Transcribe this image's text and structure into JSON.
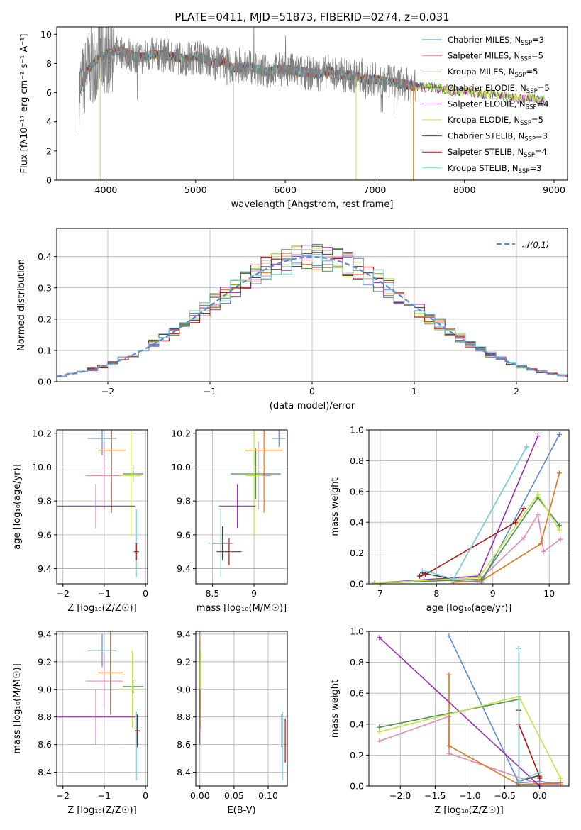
{
  "title": "PLATE=0411, MJD=51873, FIBERID=0274, z=0.031",
  "colors": {
    "chabrier_miles": "#5b8bd6",
    "salpeter_miles": "#e08ab8",
    "kroupa_miles": "#d97a1e",
    "chabrier_elodie": "#4f8f56",
    "salpeter_elodie": "#9b2fae",
    "kroupa_elodie": "#c6e34a",
    "chabrier_stelib": "#4a4a4a",
    "salpeter_stelib": "#b01515",
    "kroupa_stelib": "#7fd3dd",
    "gaussian": "#5b8bd6",
    "grid": "#b0b0b0",
    "spectrum_data": "#7f7f7f"
  },
  "chart_data": [
    {
      "id": "spectrum",
      "type": "line",
      "xlabel": "wavelength [Angstrom, rest frame]",
      "ylabel": "Flux [fλ10⁻¹⁷ erg cm⁻² s⁻¹ A⁻¹]",
      "xlim": [
        3450,
        9150
      ],
      "ylim": [
        0,
        10.5
      ],
      "xticks": [
        4000,
        5000,
        6000,
        7000,
        8000,
        9000
      ],
      "yticks": [
        0,
        2,
        4,
        6,
        8,
        10
      ],
      "grid": false,
      "legend_position": "top-right",
      "legend": [
        {
          "key": "chabrier_miles",
          "label": "Chabrier MILES, N",
          "sub": "SSP",
          "n": "=3"
        },
        {
          "key": "salpeter_miles",
          "label": "Salpeter MILES, N",
          "sub": "SSP",
          "n": "=5"
        },
        {
          "key": "kroupa_miles",
          "label": "Kroupa MILES, N",
          "sub": "SSP",
          "n": "=5"
        },
        {
          "key": "chabrier_elodie",
          "label": "Chabrier ELODIE, N",
          "sub": "SSP",
          "n": "=5"
        },
        {
          "key": "salpeter_elodie",
          "label": "Salpeter ELODIE, N",
          "sub": "SSP",
          "n": "=4"
        },
        {
          "key": "kroupa_elodie",
          "label": "Kroupa ELODIE, N",
          "sub": "SSP",
          "n": "=5"
        },
        {
          "key": "chabrier_stelib",
          "label": "Chabrier STELIB, N",
          "sub": "SSP",
          "n": "=3"
        },
        {
          "key": "salpeter_stelib",
          "label": "Salpeter STELIB, N",
          "sub": "SSP",
          "n": "=4"
        },
        {
          "key": "kroupa_stelib",
          "label": "Kroupa STELIB, N",
          "sub": "SSP",
          "n": "=3"
        }
      ],
      "data_continuum": {
        "x": [
          3700,
          3800,
          3900,
          4000,
          4100,
          4200,
          4300,
          4400,
          4500,
          4600,
          4700,
          4800,
          4900,
          5000,
          5100,
          5200,
          5300,
          5400,
          5500,
          5600,
          5700,
          5800,
          5900,
          6000,
          6100,
          6200,
          6300,
          6400,
          6500,
          6600,
          6700,
          6800,
          6900,
          7000,
          7100,
          7200,
          7300,
          7400,
          7500,
          7600,
          7700,
          7800,
          7900,
          8000,
          8100,
          8200,
          8300,
          8400,
          8500,
          8600,
          8700,
          8800,
          8900
        ],
        "y": [
          6.1,
          7.6,
          8.3,
          8.6,
          8.9,
          8.8,
          8.5,
          8.4,
          8.6,
          8.6,
          8.5,
          8.4,
          8.3,
          8.5,
          8.3,
          8.0,
          8.2,
          7.7,
          7.7,
          7.8,
          7.6,
          7.4,
          7.6,
          7.6,
          7.5,
          7.4,
          7.3,
          7.3,
          7.5,
          7.2,
          7.2,
          7.1,
          6.9,
          6.9,
          6.8,
          6.7,
          6.6,
          6.5,
          6.4,
          6.4,
          6.3,
          6.2,
          6.1,
          6.1,
          6.0,
          5.9,
          5.9,
          5.8,
          5.7,
          5.6,
          5.7,
          5.5,
          5.5
        ]
      },
      "data_range": [
        3700,
        7450
      ],
      "deep_dips": [
        {
          "x": 3935,
          "color": "kroupa_elodie"
        },
        {
          "x": 5420,
          "color": "spectrum_data"
        },
        {
          "x": 6790,
          "color": "kroupa_elodie"
        },
        {
          "x": 7430,
          "color": "kroupa_miles"
        }
      ]
    },
    {
      "id": "residuals",
      "type": "histogram",
      "xlabel": "(data-model)/error",
      "ylabel": "Normed distribution",
      "xlim": [
        -2.5,
        2.5
      ],
      "ylim": [
        0,
        0.49
      ],
      "xticks": [
        -2,
        -1,
        0,
        1,
        2
      ],
      "yticks": [
        0.0,
        0.1,
        0.2,
        0.3,
        0.4
      ],
      "grid": true,
      "legend_position": "top-right",
      "gaussian_label": "𝒩(0,1)",
      "bin_width": 0.1,
      "series_keys": [
        "chabrier_miles",
        "salpeter_miles",
        "kroupa_miles",
        "chabrier_elodie",
        "salpeter_elodie",
        "kroupa_elodie",
        "chabrier_stelib",
        "salpeter_stelib",
        "kroupa_stelib"
      ]
    },
    {
      "id": "age_vs_Z",
      "type": "errorbar",
      "xlabel": "Z [log₁₀(Z/Z☉)]",
      "ylabel": "age  [log₁₀(age/yr)]",
      "xlim": [
        -2.15,
        0.05
      ],
      "ylim": [
        9.31,
        10.22
      ],
      "xticks": [
        -2,
        -1,
        0
      ],
      "yticks": [
        9.4,
        9.6,
        9.8,
        10.0,
        10.2
      ],
      "grid": true,
      "points": [
        {
          "key": "chabrier_miles",
          "x": -1.05,
          "xerr": 0.35,
          "y": 10.17,
          "yerr": 0.1
        },
        {
          "key": "kroupa_miles",
          "x": -0.82,
          "xerr": 0.33,
          "y": 10.1,
          "yerr": 0.37
        },
        {
          "key": "salpeter_miles",
          "x": -1.0,
          "xerr": 0.45,
          "y": 9.95,
          "yerr": 0.2
        },
        {
          "key": "chabrier_elodie",
          "x": -0.3,
          "xerr": 0.25,
          "y": 9.96,
          "yerr": 0.05
        },
        {
          "key": "kroupa_elodie",
          "x": -0.35,
          "xerr": 0.25,
          "y": 9.95,
          "yerr": 0.36
        },
        {
          "key": "salpeter_elodie",
          "x": -1.2,
          "xerr": 0.95,
          "y": 9.77,
          "yerr": 0.13
        },
        {
          "key": "kroupa_stelib",
          "x": -0.22,
          "xerr": 0.05,
          "y": 9.55,
          "yerr": 0.2
        },
        {
          "key": "salpeter_stelib",
          "x": -0.22,
          "xerr": 0.06,
          "y": 9.5,
          "yerr": 0.05
        }
      ]
    },
    {
      "id": "age_vs_mass",
      "type": "errorbar",
      "xlabel": "mass [log₁₀(M/M☉)]",
      "ylabel": "",
      "xlim": [
        8.3,
        9.4
      ],
      "ylim": [
        9.31,
        10.22
      ],
      "xticks": [
        8.5,
        9.0
      ],
      "yticks": [
        9.4,
        9.6,
        9.8,
        10.0,
        10.2
      ],
      "grid": true,
      "points": [
        {
          "key": "chabrier_miles",
          "x": 9.3,
          "xerr": 0.08,
          "y": 10.17,
          "yerr": 0.05
        },
        {
          "key": "kroupa_miles",
          "x": 9.12,
          "xerr": 0.23,
          "y": 10.1,
          "yerr": 0.37
        },
        {
          "key": "salpeter_miles",
          "x": 9.05,
          "xerr": 0.15,
          "y": 9.95,
          "yerr": 0.2
        },
        {
          "key": "chabrier_elodie",
          "x": 9.02,
          "xerr": 0.3,
          "y": 9.96,
          "yerr": 0.15
        },
        {
          "key": "kroupa_elodie",
          "x": 9.0,
          "xerr": 0.1,
          "y": 9.95,
          "yerr": 0.35
        },
        {
          "key": "salpeter_elodie",
          "x": 8.8,
          "xerr": 0.22,
          "y": 9.77,
          "yerr": 0.13
        },
        {
          "key": "kroupa_stelib",
          "x": 8.6,
          "xerr": 0.15,
          "y": 9.55,
          "yerr": 0.2
        },
        {
          "key": "salpeter_stelib",
          "x": 8.7,
          "xerr": 0.15,
          "y": 9.5,
          "yerr": 0.08
        },
        {
          "key": "chabrier_stelib",
          "x": 8.62,
          "xerr": 0.12,
          "y": 9.55,
          "yerr": 0.1
        }
      ]
    },
    {
      "id": "mass_weight_vs_age",
      "type": "line",
      "xlabel": "age  [log₁₀(age/yr)]",
      "ylabel": "mass weight",
      "xlim": [
        6.8,
        10.35
      ],
      "ylim": [
        0,
        1.0
      ],
      "xticks": [
        7,
        8,
        9,
        10
      ],
      "yticks": [
        0.0,
        0.2,
        0.4,
        0.6,
        0.8,
        1.0
      ],
      "grid": true,
      "series": [
        {
          "key": "chabrier_miles",
          "x": [
            8.3,
            8.8,
            10.18
          ],
          "y": [
            0.02,
            0.01,
            0.97
          ]
        },
        {
          "key": "salpeter_miles",
          "x": [
            8.3,
            8.75,
            9.55,
            9.8,
            9.9,
            10.2
          ],
          "y": [
            0.01,
            0.02,
            0.3,
            0.45,
            0.21,
            0.29
          ]
        },
        {
          "key": "kroupa_miles",
          "x": [
            8.3,
            8.8,
            9.85,
            10.18
          ],
          "y": [
            0.01,
            0.02,
            0.26,
            0.72
          ]
        },
        {
          "key": "chabrier_elodie",
          "x": [
            6.9,
            8.8,
            9.8,
            10.18
          ],
          "y": [
            0.005,
            0.03,
            0.56,
            0.38
          ]
        },
        {
          "key": "salpeter_elodie",
          "x": [
            6.9,
            8.75,
            9.8
          ],
          "y": [
            0.005,
            0.05,
            0.96
          ]
        },
        {
          "key": "kroupa_elodie",
          "x": [
            6.9,
            8.75,
            9.8,
            10.18
          ],
          "y": [
            0.005,
            0.04,
            0.58,
            0.35
          ]
        },
        {
          "key": "chabrier_stelib",
          "x": [
            7.75,
            8.3,
            9.6
          ],
          "y": [
            0.07,
            0.03,
            0.89
          ]
        },
        {
          "key": "salpeter_stelib",
          "x": [
            7.7,
            7.8,
            9.4,
            9.55
          ],
          "y": [
            0.05,
            0.06,
            0.4,
            0.49
          ]
        },
        {
          "key": "kroupa_stelib",
          "x": [
            7.75,
            8.3,
            9.6
          ],
          "y": [
            0.09,
            0.03,
            0.89
          ]
        }
      ]
    },
    {
      "id": "mass_vs_Z",
      "type": "errorbar",
      "xlabel": "Z [log₁₀(Z/Z☉)]",
      "ylabel": "mass [log₁₀(M/M☉)]",
      "xlim": [
        -2.15,
        0.05
      ],
      "ylim": [
        8.3,
        9.42
      ],
      "xticks": [
        -2,
        -1,
        0
      ],
      "yticks": [
        8.4,
        8.6,
        8.8,
        9.0,
        9.2,
        9.4
      ],
      "grid": true,
      "points": [
        {
          "key": "chabrier_miles",
          "x": -1.05,
          "xerr": 0.35,
          "y": 9.28,
          "yerr": 0.12
        },
        {
          "key": "kroupa_miles",
          "x": -0.85,
          "xerr": 0.3,
          "y": 9.12,
          "yerr": 0.3
        },
        {
          "key": "salpeter_miles",
          "x": -1.0,
          "xerr": 0.45,
          "y": 9.06,
          "yerr": 0.2
        },
        {
          "key": "chabrier_elodie",
          "x": -0.3,
          "xerr": 0.25,
          "y": 9.02,
          "yerr": 0.05
        },
        {
          "key": "kroupa_elodie",
          "x": -0.32,
          "xerr": 0.25,
          "y": 9.0,
          "yerr": 0.28
        },
        {
          "key": "salpeter_elodie",
          "x": -1.2,
          "xerr": 0.95,
          "y": 8.8,
          "yerr": 0.2
        },
        {
          "key": "kroupa_stelib",
          "x": -0.22,
          "xerr": 0.05,
          "y": 8.59,
          "yerr": 0.25
        },
        {
          "key": "salpeter_stelib",
          "x": -0.2,
          "xerr": 0.06,
          "y": 8.7,
          "yerr": 0.12
        }
      ]
    },
    {
      "id": "mass_vs_ebv",
      "type": "errorbar",
      "xlabel": "E(B-V)",
      "ylabel": "",
      "xlim": [
        -0.006,
        0.128
      ],
      "ylim": [
        8.3,
        9.42
      ],
      "xticks": [
        0.0,
        0.05,
        0.1
      ],
      "xticklabels": [
        "0.00",
        "0.05",
        "0.10"
      ],
      "yticks": [
        8.4,
        8.6,
        8.8,
        9.0,
        9.2,
        9.4
      ],
      "grid": true,
      "points": [
        {
          "key": "chabrier_miles",
          "x": 0.0,
          "xerr": 0.0,
          "y": 9.28,
          "yerr": 0.08
        },
        {
          "key": "kroupa_miles",
          "x": 0.0,
          "xerr": 0.0,
          "y": 9.12,
          "yerr": 0.3
        },
        {
          "key": "kroupa_elodie",
          "x": 0.001,
          "xerr": 0.0,
          "y": 9.0,
          "yerr": 0.28
        },
        {
          "key": "salpeter_elodie",
          "x": 0.0,
          "xerr": 0.0,
          "y": 8.8,
          "yerr": 0.2
        },
        {
          "key": "chabrier_stelib",
          "x": 0.12,
          "xerr": 0.0,
          "y": 8.7,
          "yerr": 0.12
        },
        {
          "key": "kroupa_stelib",
          "x": 0.121,
          "xerr": 0.0,
          "y": 8.59,
          "yerr": 0.25
        },
        {
          "key": "salpeter_stelib",
          "x": 0.125,
          "xerr": 0.0,
          "y": 8.63,
          "yerr": 0.16
        }
      ]
    },
    {
      "id": "mass_weight_vs_Z",
      "type": "line",
      "xlabel": "Z [log₁₀(Z/Z☉)]",
      "ylabel": "mass weight",
      "xlim": [
        -2.45,
        0.42
      ],
      "ylim": [
        0,
        1.0
      ],
      "xticks": [
        -2.0,
        -1.5,
        -1.0,
        -0.5,
        0.0
      ],
      "xticklabels": [
        "−2.0",
        "−1.5",
        "−1.0",
        "−0.5",
        "0.0"
      ],
      "yticks": [
        0.0,
        0.2,
        0.4,
        0.6,
        0.8,
        1.0
      ],
      "grid": true,
      "series": [
        {
          "key": "chabrier_miles",
          "x": [
            -1.3,
            -0.3,
            0.0,
            0.3
          ],
          "y": [
            0.97,
            0.02,
            0.03,
            0.01
          ]
        },
        {
          "key": "salpeter_miles",
          "x": [
            -2.3,
            -1.3,
            -1.3,
            0.0,
            0.3
          ],
          "y": [
            0.29,
            0.45,
            0.21,
            0.01,
            0.01
          ]
        },
        {
          "key": "kroupa_miles",
          "x": [
            -1.3,
            -1.3,
            -0.3,
            0.3
          ],
          "y": [
            0.72,
            0.26,
            0.01,
            0.02
          ]
        },
        {
          "key": "chabrier_elodie",
          "x": [
            -2.3,
            -0.3,
            -0.3
          ],
          "y": [
            0.38,
            0.56,
            0.0
          ]
        },
        {
          "key": "salpeter_elodie",
          "x": [
            -2.3,
            0.0
          ],
          "y": [
            0.96,
            0.0
          ]
        },
        {
          "key": "kroupa_elodie",
          "x": [
            -2.3,
            -0.3,
            0.3
          ],
          "y": [
            0.35,
            0.58,
            0.05
          ]
        },
        {
          "key": "chabrier_stelib",
          "x": [
            -0.3,
            -0.3,
            0.0
          ],
          "y": [
            0.89,
            0.03,
            0.07
          ]
        },
        {
          "key": "salpeter_stelib",
          "x": [
            -0.3,
            -0.3,
            0.0,
            0.0
          ],
          "y": [
            0.49,
            0.4,
            0.06,
            0.05
          ]
        },
        {
          "key": "kroupa_stelib",
          "x": [
            -0.3,
            -0.3,
            0.0
          ],
          "y": [
            0.89,
            0.03,
            0.09
          ]
        }
      ]
    }
  ]
}
